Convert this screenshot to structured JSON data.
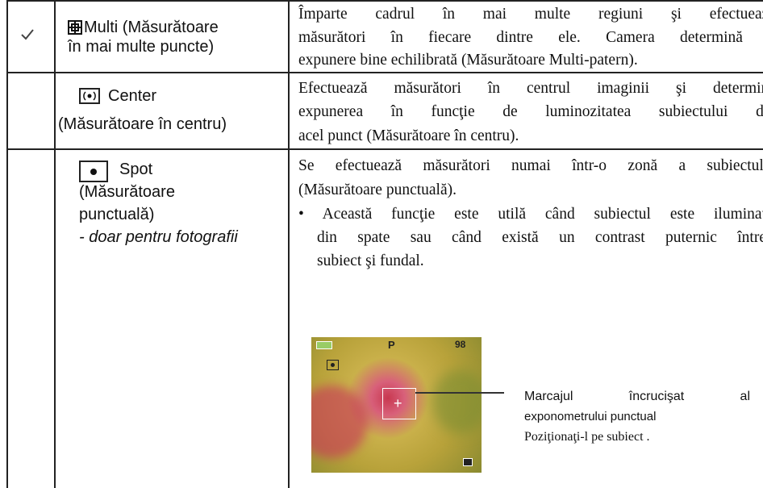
{
  "table": {
    "rows": [
      {
        "label": [
          "Multi (Măsurătoare",
          "în mai multe puncte)"
        ],
        "description": [
          "Împarte cadrul în mai multe regiuni şi efectuează",
          "măsurători în fiecare dintre ele. Camera determină o",
          "expunere bine echilibrată (Măsurătoare Multi-patern)."
        ]
      },
      {
        "label": [
          "Center",
          "(Măsurătoare în centru)"
        ],
        "description": [
          "Efectuează măsurători în centrul imaginii şi determină",
          "expunerea în funcţie de luminozitatea subiectului din",
          "acel punct (Măsurătoare în centru)."
        ]
      },
      {
        "label": [
          "Spot",
          "(Măsurătoare",
          "punctuală)",
          "- doar pentru fotografii"
        ],
        "description": [
          "Se efectuează măsurători numai într-o zonă a subiectului",
          "(Măsurătoare punctuală)."
        ],
        "bullet": [
          "• Această funcţie este utilă când subiectul este iluminat",
          "din spate sau când există un contrast puternic între",
          "subiect şi fundal."
        ],
        "screen": {
          "mode": "P",
          "count": "98"
        },
        "callout": [
          "Marcajul încrucişat al",
          "exponometrului punctual",
          "Poziţionaţi-l pe subiect ."
        ]
      }
    ]
  }
}
